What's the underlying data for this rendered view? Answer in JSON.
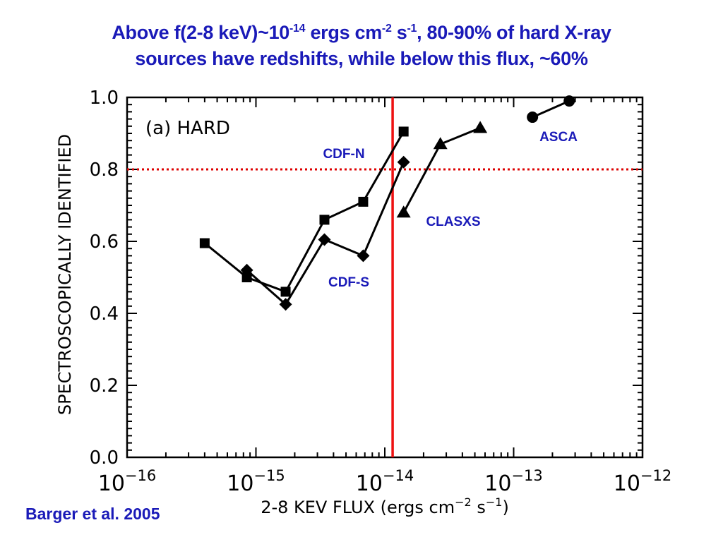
{
  "title": {
    "p1": "Above f(2-8 keV)~10",
    "e1": "-14",
    "p2": " ergs cm",
    "e2": "-2",
    "p3": " s",
    "e3": "-1",
    "p4": ", 80-90% of hard X-ray",
    "line2": "sources have redshifts, while below this flux, ~60%"
  },
  "source_note": "Barger et al. 2005",
  "chart_data": {
    "type": "line",
    "panel_label": "(a) HARD",
    "xlabel": "2-8 KEV FLUX (ergs cm",
    "xlabel_exp1": "−2",
    "xlabel_mid": " s",
    "xlabel_exp2": "−1",
    "xlabel_end": ")",
    "ylabel": "SPECTROSCOPICALLY IDENTIFIED",
    "x_scale": "log",
    "xlim": [
      1e-16,
      1e-12
    ],
    "ylim": [
      0.0,
      1.0
    ],
    "x_ticks": [
      {
        "value": 1e-16,
        "base": "10",
        "exp": "−16"
      },
      {
        "value": 1e-15,
        "base": "10",
        "exp": "−15"
      },
      {
        "value": 1e-14,
        "base": "10",
        "exp": "−14"
      },
      {
        "value": 1e-13,
        "base": "10",
        "exp": "−13"
      },
      {
        "value": 1e-12,
        "base": "10",
        "exp": "−12"
      }
    ],
    "y_ticks": [
      "0.0",
      "0.2",
      "0.4",
      "0.6",
      "0.8",
      "1.0"
    ],
    "grid": false,
    "series": [
      {
        "name": "CDF-N",
        "marker": "square",
        "x": [
          4e-16,
          8.5e-16,
          1.7e-15,
          3.4e-15,
          6.8e-15,
          1.4e-14
        ],
        "y": [
          0.595,
          0.5,
          0.46,
          0.66,
          0.71,
          0.905
        ]
      },
      {
        "name": "CDF-S",
        "marker": "diamond",
        "x": [
          8.5e-16,
          1.7e-15,
          3.4e-15,
          6.8e-15,
          1.4e-14
        ],
        "y": [
          0.52,
          0.425,
          0.605,
          0.56,
          0.82
        ]
      },
      {
        "name": "CLASXS",
        "marker": "triangle",
        "x": [
          1.4e-14,
          2.7e-14,
          5.5e-14
        ],
        "y": [
          0.68,
          0.87,
          0.915
        ]
      },
      {
        "name": "ASCA",
        "marker": "circle",
        "x": [
          1.4e-13,
          2.7e-13
        ],
        "y": [
          0.945,
          0.99
        ]
      }
    ],
    "series_label_colors": "#1a1ab8",
    "reference_lines": [
      {
        "orientation": "vertical",
        "x": 1.15e-14,
        "color": "#ee1111",
        "style": "solid"
      },
      {
        "orientation": "horizontal",
        "y": 0.8,
        "color": "#dd0000",
        "style": "dotted"
      }
    ]
  }
}
